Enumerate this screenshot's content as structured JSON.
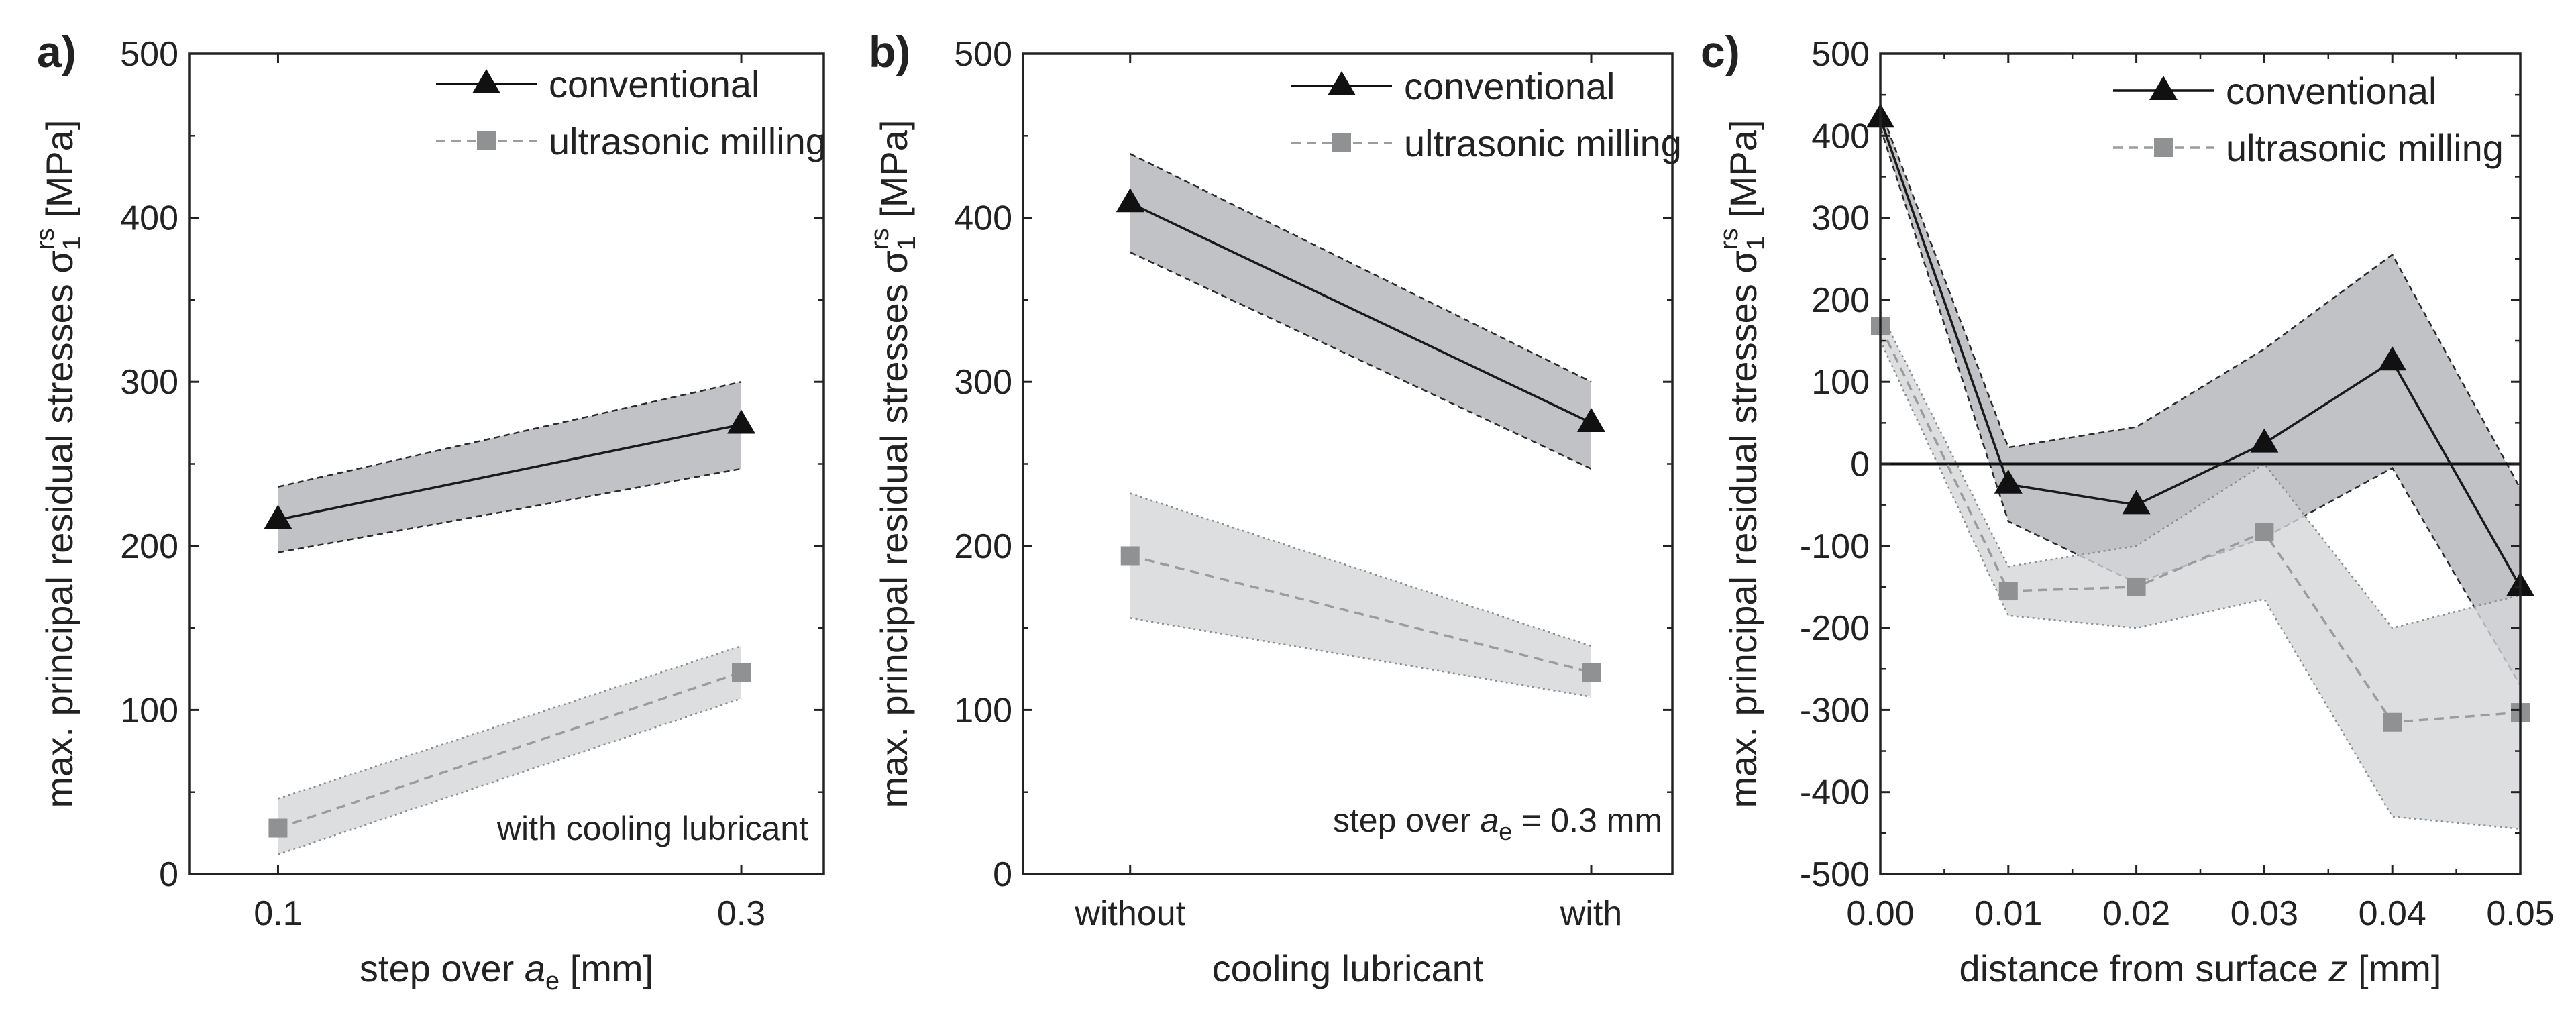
{
  "chart_data": [
    {
      "type": "line",
      "panel_label": "a)",
      "ylabel": "max. principal residual stresses σ1rs [MPa]",
      "ylabel_parts": {
        "main": "max. principal residual stresses σ",
        "sub": "1",
        "sup": "rs",
        "unit": " [MPa]"
      },
      "xlabel_parts": {
        "pre": "step over ",
        "ital": "a",
        "sub": "e",
        "post": " [mm]"
      },
      "x_scale": "category",
      "categories": [
        "0.1",
        "0.3"
      ],
      "ylim": [
        0,
        500
      ],
      "yticks": [
        "0",
        "100",
        "200",
        "300",
        "400",
        "500"
      ],
      "annotation": "with cooling lubricant",
      "series": [
        {
          "name": "conventional",
          "marker": "triangle",
          "values": [
            216,
            274
          ],
          "lower": [
            196,
            247
          ],
          "upper": [
            236,
            300
          ]
        },
        {
          "name": "ultrasonic milling",
          "marker": "square",
          "values": [
            28,
            123
          ],
          "lower": [
            12,
            107
          ],
          "upper": [
            46,
            139
          ]
        }
      ]
    },
    {
      "type": "line",
      "panel_label": "b)",
      "ylabel": "max. principal residual stresses σ1rs [MPa]",
      "ylabel_parts": {
        "main": "max. principal residual stresses σ",
        "sub": "1",
        "sup": "rs",
        "unit": " [MPa]"
      },
      "xlabel": "cooling lubricant",
      "x_scale": "category",
      "categories": [
        "without",
        "with"
      ],
      "ylim": [
        0,
        500
      ],
      "yticks": [
        "0",
        "100",
        "200",
        "300",
        "400",
        "500"
      ],
      "annotation_parts": {
        "pre": "step over ",
        "ital": "a",
        "sub": "e",
        "post": " = 0.3 mm"
      },
      "series": [
        {
          "name": "conventional",
          "marker": "triangle",
          "values": [
            409,
            275
          ],
          "lower": [
            379,
            247
          ],
          "upper": [
            439,
            300
          ]
        },
        {
          "name": "ultrasonic milling",
          "marker": "square",
          "values": [
            194,
            123
          ],
          "lower": [
            156,
            108
          ],
          "upper": [
            232,
            139
          ]
        }
      ]
    },
    {
      "type": "line",
      "panel_label": "c)",
      "ylabel": "max. principal residual stresses σ1rs [MPa]",
      "ylabel_parts": {
        "main": "max. principal residual stresses σ",
        "sub": "1",
        "sup": "rs",
        "unit": " [MPa]"
      },
      "xlabel_parts": {
        "pre": "distance from surface ",
        "ital": "z",
        "post": " [mm]"
      },
      "x_scale": "linear",
      "x": [
        0.0,
        0.01,
        0.02,
        0.03,
        0.04,
        0.05
      ],
      "xticks": [
        "0.00",
        "0.01",
        "0.02",
        "0.03",
        "0.04",
        "0.05"
      ],
      "xlim": [
        0,
        0.05
      ],
      "ylim": [
        -500,
        500
      ],
      "yticks": [
        "-500",
        "-400",
        "-300",
        "-200",
        "-100",
        "0",
        "100",
        "200",
        "300",
        "400",
        "500"
      ],
      "zero_line": true,
      "series": [
        {
          "name": "conventional",
          "marker": "triangle",
          "values": [
            421,
            -25,
            -50,
            25,
            125,
            -150
          ],
          "lower": [
            410,
            -70,
            -145,
            -90,
            -5,
            -270
          ],
          "upper": [
            432,
            20,
            45,
            140,
            255,
            -30
          ]
        },
        {
          "name": "ultrasonic milling",
          "marker": "square",
          "values": [
            168,
            -155,
            -150,
            -83,
            -315,
            -303
          ],
          "lower": [
            150,
            -185,
            -200,
            -165,
            -430,
            -445
          ],
          "upper": [
            185,
            -125,
            -100,
            0,
            -200,
            -160
          ]
        }
      ]
    }
  ],
  "colors": {
    "axis": "#222222",
    "conventional_line": "#1a1a1a",
    "conventional_band": "#a9abae",
    "ultrasonic_marker": "#8f9193",
    "ultrasonic_line": "#9a9c9e",
    "ultrasonic_band": "#d5d6d8"
  }
}
